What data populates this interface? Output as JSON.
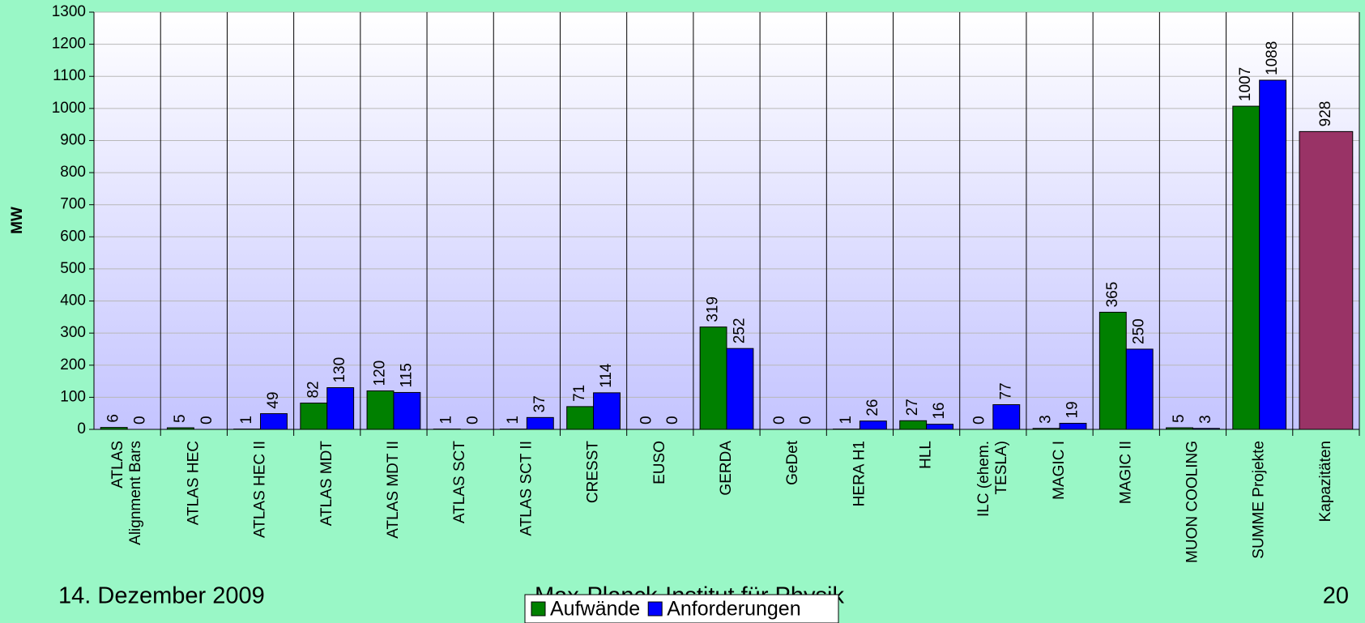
{
  "chart_data": {
    "type": "bar",
    "y_label": "MW",
    "categories": [
      [
        "ATLAS",
        "Alignment Bars"
      ],
      [
        "ATLAS HEC"
      ],
      [
        "ATLAS HEC II"
      ],
      [
        "ATLAS MDT"
      ],
      [
        "ATLAS MDT II"
      ],
      [
        "ATLAS SCT"
      ],
      [
        "ATLAS SCT II"
      ],
      [
        "CRESST"
      ],
      [
        "EUSO"
      ],
      [
        "GERDA"
      ],
      [
        "GeDet"
      ],
      [
        "HERA H1"
      ],
      [
        "HLL"
      ],
      [
        "ILC (ehem.",
        "TESLA)"
      ],
      [
        "MAGIC I"
      ],
      [
        "MAGIC II"
      ],
      [
        "MUON COOLING"
      ],
      [
        "SUMME Projekte"
      ],
      [
        "Kapazitäten"
      ]
    ],
    "series": [
      {
        "name": "Aufwände",
        "color": "#008000",
        "values": [
          6,
          5,
          1,
          82,
          120,
          1,
          1,
          71,
          0,
          319,
          0,
          1,
          27,
          0,
          3,
          365,
          5,
          1007,
          928
        ]
      },
      {
        "name": "Anforderungen",
        "color": "#0000ff",
        "values": [
          0,
          0,
          49,
          130,
          115,
          0,
          37,
          114,
          0,
          252,
          0,
          26,
          16,
          77,
          19,
          250,
          3,
          1088,
          null
        ]
      }
    ],
    "highlight_color": "#993366",
    "ylim": [
      0,
      1300
    ],
    "yticks": [
      0,
      100,
      200,
      300,
      400,
      500,
      600,
      700,
      800,
      900,
      1000,
      1100,
      1200,
      1300
    ],
    "grid": true,
    "legend": "bottom"
  },
  "footer": {
    "date": "14. Dezember 2009",
    "institute": "Max-Planck-Institut für Physik",
    "page": "20"
  }
}
